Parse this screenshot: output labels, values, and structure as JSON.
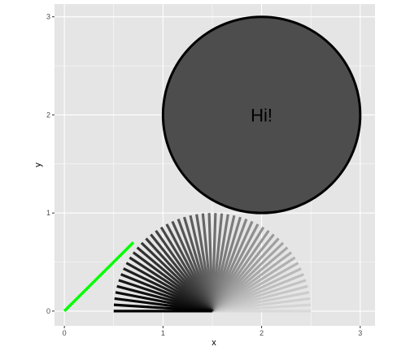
{
  "chart_data": {
    "type": "scatter",
    "title": "",
    "xlabel": "x",
    "ylabel": "y",
    "xlim": [
      -0.1,
      3.15
    ],
    "ylim": [
      -0.15,
      3.13
    ],
    "x_ticks": [
      0,
      1,
      2,
      3
    ],
    "y_ticks": [
      0,
      1,
      2,
      3
    ],
    "x_tick_labels": [
      "0",
      "1",
      "2",
      "3"
    ],
    "y_tick_labels": [
      "0",
      "1",
      "2",
      "3"
    ],
    "grid": true,
    "panel_background": "#e5e5e5",
    "grid_color": "#ffffff",
    "legend": "none",
    "green_segment": {
      "x": [
        0,
        0.7
      ],
      "y": [
        0,
        0.7
      ],
      "color": "#00ff00"
    },
    "fan": {
      "origin": [
        1.5,
        0
      ],
      "radius": 1,
      "angle_start_deg": 0,
      "angle_end_deg": 180,
      "count": 50,
      "color_light": "#d9d9d9",
      "color_dark": "#000000"
    },
    "circle": {
      "center": [
        2,
        2
      ],
      "radius": 1,
      "fill": "#4d4d4d",
      "stroke": "#000000",
      "label": "Hi!"
    }
  }
}
